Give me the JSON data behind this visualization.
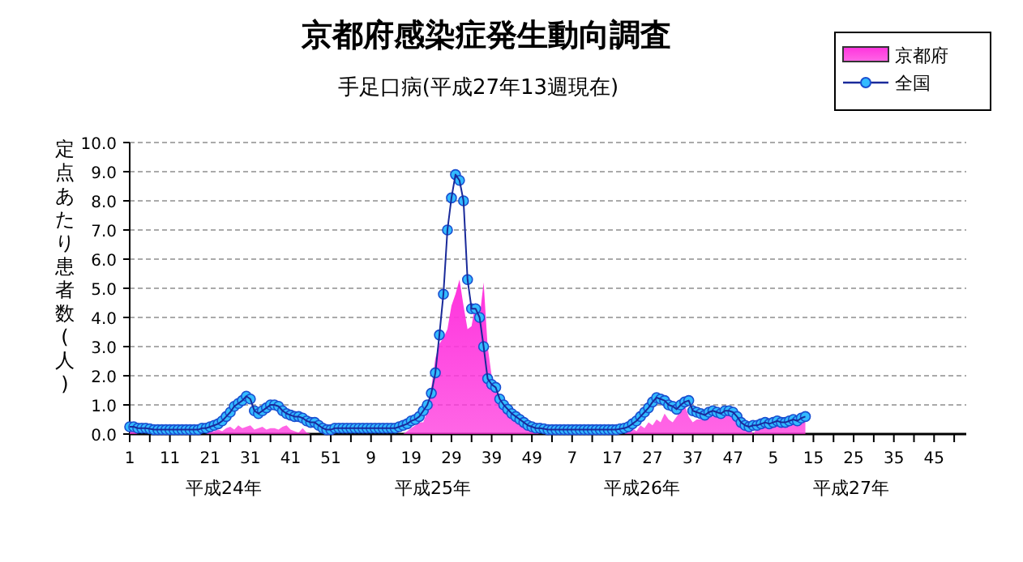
{
  "chart_data": {
    "type": "line",
    "title": "京都府感染症発生動向調査",
    "subtitle": "手足口病(平成27年13週現在)",
    "ylabel": "定点あたり患者数(人)",
    "categories": [
      "1",
      null,
      null,
      null,
      null,
      null,
      null,
      null,
      null,
      null,
      "11",
      null,
      null,
      null,
      null,
      null,
      null,
      null,
      null,
      null,
      "21",
      null,
      null,
      null,
      null,
      null,
      null,
      null,
      null,
      null,
      "31",
      null,
      null,
      null,
      null,
      null,
      null,
      null,
      null,
      null,
      "41",
      null,
      null,
      null,
      null,
      null,
      null,
      null,
      null,
      null,
      "51",
      null,
      null,
      null,
      null,
      null,
      null,
      null,
      null,
      null,
      "9",
      null,
      null,
      null,
      null,
      null,
      null,
      null,
      null,
      null,
      "19",
      null,
      null,
      null,
      null,
      null,
      null,
      null,
      null,
      null,
      "29",
      null,
      null,
      null,
      null,
      null,
      null,
      null,
      null,
      null,
      "39",
      null,
      null,
      null,
      null,
      null,
      null,
      null,
      null,
      null,
      "49",
      null,
      null,
      null,
      null,
      null,
      null,
      null,
      null,
      null,
      "7",
      null,
      null,
      null,
      null,
      null,
      null,
      null,
      null,
      null,
      "17",
      null,
      null,
      null,
      null,
      null,
      null,
      null,
      null,
      null,
      "27",
      null,
      null,
      null,
      null,
      null,
      null,
      null,
      null,
      null,
      "37",
      null,
      null,
      null,
      null,
      null,
      null,
      null,
      null,
      null,
      "47",
      null,
      null,
      null,
      null,
      null,
      null,
      null,
      null,
      null,
      "5",
      null,
      null,
      null,
      null,
      null,
      null,
      null,
      null,
      null,
      "15",
      null,
      null,
      null,
      null,
      null,
      null,
      null,
      null,
      null,
      "25",
      null,
      null,
      null,
      null,
      null,
      null,
      null,
      null,
      null,
      "35",
      null,
      null,
      null,
      null,
      null,
      null,
      null,
      null,
      null,
      "45",
      null,
      null,
      null,
      null,
      null,
      null,
      null,
      null
    ],
    "ylim": [
      0,
      10
    ],
    "yticks": [
      {
        "value": 0,
        "label": "0.0"
      },
      {
        "value": 1,
        "label": "1.0"
      },
      {
        "value": 2,
        "label": "2.0"
      },
      {
        "value": 3,
        "label": "3.0"
      },
      {
        "value": 4,
        "label": "4.0"
      },
      {
        "value": 5,
        "label": "5.0"
      },
      {
        "value": 6,
        "label": "6.0"
      },
      {
        "value": 7,
        "label": "7.0"
      },
      {
        "value": 8,
        "label": "8.0"
      },
      {
        "value": 9,
        "label": "9.0"
      },
      {
        "value": 10,
        "label": "10.0"
      }
    ],
    "grid": "y",
    "legend": "top right",
    "annotations": [
      "平成24年",
      "平成25年",
      "平成26年",
      "平成27年"
    ],
    "series": [
      {
        "name": "京都府",
        "type": "area",
        "color": "#ff33dd",
        "values": [
          0.2,
          0.1,
          0,
          0,
          0,
          0,
          0,
          0,
          0,
          0,
          0,
          0,
          0,
          0,
          0,
          0,
          0,
          0,
          0,
          0,
          0.1,
          0.1,
          0.15,
          0.1,
          0.2,
          0.25,
          0.15,
          0.3,
          0.2,
          0.25,
          0.3,
          0.15,
          0.2,
          0.25,
          0.15,
          0.2,
          0.2,
          0.15,
          0.25,
          0.3,
          0.15,
          0.1,
          0.05,
          0.2,
          0.05,
          0,
          0,
          0,
          0,
          0,
          0,
          0,
          0,
          0,
          0,
          0,
          0,
          0,
          0,
          0,
          0,
          0,
          0,
          0,
          0,
          0,
          0,
          0,
          0,
          0.1,
          0.2,
          0.3,
          0.4,
          0.4,
          0.8,
          1.6,
          2.6,
          3.1,
          3.3,
          3.6,
          4.4,
          4.8,
          5.3,
          4.4,
          3.6,
          3.7,
          4.5,
          4.0,
          5.2,
          3.0,
          2.0,
          1.6,
          1.3,
          1.1,
          0.9,
          0.7,
          0.6,
          0.4,
          0.3,
          0.2,
          0.1,
          0.05,
          0,
          0,
          0,
          0,
          0,
          0,
          0,
          0,
          0,
          0,
          0,
          0,
          0,
          0,
          0,
          0,
          0,
          0,
          0,
          0,
          0,
          0,
          0.1,
          0.2,
          0.1,
          0.3,
          0.2,
          0.4,
          0.3,
          0.5,
          0.4,
          0.7,
          0.5,
          0.4,
          0.6,
          0.8,
          1.0,
          0.6,
          0.4,
          0.5,
          0.5,
          0.6,
          0.6,
          0.6,
          0.7,
          0.7,
          0.7,
          0.8,
          0.7,
          0.7,
          0.6,
          0.5,
          0.3,
          0,
          0.2,
          0.3,
          0.3,
          0.4,
          0.3,
          0.4,
          0.6,
          0.3,
          0.4,
          0.4,
          0.4,
          0.5,
          0.4,
          null,
          null,
          null,
          null,
          null,
          null,
          null,
          null,
          null,
          null,
          null,
          null,
          null,
          null,
          null,
          null,
          null,
          null,
          null,
          null,
          null,
          null,
          null,
          null,
          null,
          null,
          null,
          null,
          null,
          null,
          null,
          null,
          null,
          null,
          null,
          null,
          null,
          null,
          null,
          null
        ]
      },
      {
        "name": "全国",
        "color": "#33bbff",
        "marker": "circle",
        "line_style": "solid",
        "values": [
          0.25,
          0.25,
          0.2,
          0.2,
          0.2,
          0.18,
          0.15,
          0.15,
          0.15,
          0.15,
          0.15,
          0.15,
          0.15,
          0.15,
          0.15,
          0.15,
          0.15,
          0.15,
          0.2,
          0.2,
          0.25,
          0.3,
          0.35,
          0.45,
          0.6,
          0.75,
          0.95,
          1.05,
          1.15,
          1.3,
          1.2,
          0.8,
          0.7,
          0.8,
          0.9,
          1.0,
          1.0,
          0.95,
          0.8,
          0.7,
          0.65,
          0.6,
          0.6,
          0.55,
          0.45,
          0.4,
          0.4,
          0.3,
          0.2,
          0.15,
          0.15,
          0.2,
          0.2,
          0.2,
          0.2,
          0.2,
          0.2,
          0.2,
          0.2,
          0.2,
          0.2,
          0.2,
          0.2,
          0.2,
          0.2,
          0.2,
          0.2,
          0.25,
          0.3,
          0.35,
          0.45,
          0.5,
          0.6,
          0.8,
          1.0,
          1.4,
          2.1,
          3.4,
          4.8,
          7.0,
          8.1,
          8.9,
          8.7,
          8.0,
          5.3,
          4.3,
          4.3,
          4.0,
          3.0,
          1.9,
          1.7,
          1.6,
          1.2,
          1.0,
          0.85,
          0.7,
          0.6,
          0.5,
          0.4,
          0.3,
          0.25,
          0.2,
          0.2,
          0.18,
          0.15,
          0.15,
          0.15,
          0.15,
          0.15,
          0.15,
          0.15,
          0.15,
          0.15,
          0.15,
          0.15,
          0.15,
          0.15,
          0.15,
          0.15,
          0.15,
          0.15,
          0.15,
          0.18,
          0.2,
          0.25,
          0.35,
          0.45,
          0.6,
          0.75,
          0.9,
          1.1,
          1.25,
          1.2,
          1.15,
          1.0,
          0.95,
          0.85,
          1.0,
          1.1,
          1.15,
          0.8,
          0.75,
          0.7,
          0.65,
          0.75,
          0.8,
          0.75,
          0.7,
          0.8,
          0.8,
          0.75,
          0.6,
          0.4,
          0.3,
          0.25,
          0.3,
          0.3,
          0.35,
          0.4,
          0.35,
          0.4,
          0.45,
          0.4,
          0.4,
          0.45,
          0.5,
          0.45,
          0.55,
          0.6,
          null,
          null,
          null,
          null,
          null,
          null,
          null,
          null,
          null,
          null,
          null,
          null,
          null,
          null,
          null,
          null,
          null,
          null,
          null,
          null,
          null,
          null,
          null,
          null,
          null,
          null,
          null,
          null,
          null,
          null,
          null,
          null,
          null,
          null,
          null,
          null,
          null,
          null,
          null,
          null
        ]
      }
    ]
  }
}
